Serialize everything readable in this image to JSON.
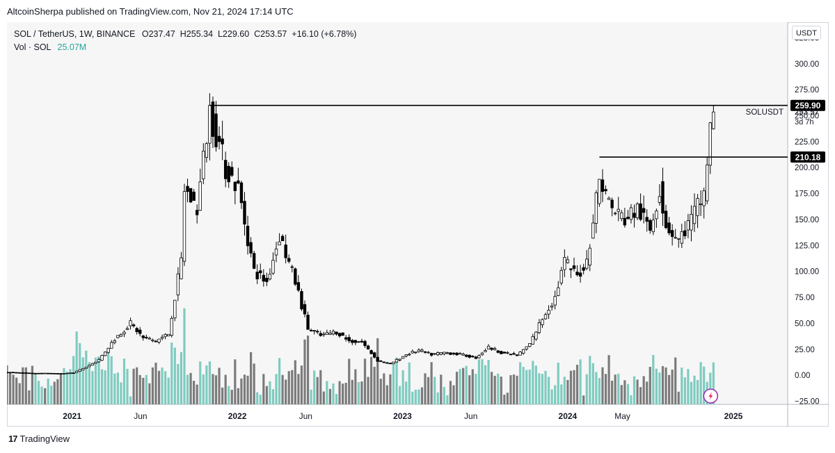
{
  "header": {
    "publish_line": "AltcoinSherpa published on TradingView.com, Nov 21, 2024 17:14 UTC"
  },
  "legend": {
    "symbol": "SOL / TetherUS, 1W, BINANCE",
    "ohlc": "O237.47  H255.34  L229.60  C253.57  +16.10 (+6.78%)",
    "volume_label": "Vol · SOL",
    "volume_value": "25.07M"
  },
  "footer": {
    "brand": "TradingView"
  },
  "price_axis": {
    "unit": "USDT"
  },
  "colors": {
    "up": "#ffffff",
    "down": "#000000",
    "vol_up": "#7fcbc0",
    "vol_down": "#7b7b7b",
    "level": "#000000"
  },
  "chart_data": {
    "type": "candlestick",
    "timeframe": "1W",
    "y_ticks": [
      325,
      300,
      275,
      250,
      225,
      200,
      175,
      150,
      125,
      100,
      75,
      50,
      25,
      0,
      -25
    ],
    "y_tick_labels": [
      "325.00",
      "300.00",
      "275.00",
      "250.00",
      "225.00",
      "200.00",
      "175.00",
      "150.00",
      "125.00",
      "100.00",
      "75.00",
      "50.00",
      "25.00",
      "0.00",
      "−25.00"
    ],
    "ylim": [
      -28,
      340
    ],
    "x_labels": [
      {
        "label": "2021",
        "date": "2021-01-01"
      },
      {
        "label": "Jun",
        "date": "2021-06-01"
      },
      {
        "label": "2022",
        "date": "2022-01-01"
      },
      {
        "label": "Jun",
        "date": "2022-06-01"
      },
      {
        "label": "2023",
        "date": "2023-01-01"
      },
      {
        "label": "Jun",
        "date": "2023-06-01"
      },
      {
        "label": "2024",
        "date": "2024-01-01"
      },
      {
        "label": "May",
        "date": "2024-05-01"
      },
      {
        "label": "2025",
        "date": "2025-01-01"
      }
    ],
    "xlim": [
      "2020-08-10",
      "2025-05-01"
    ],
    "levels": [
      {
        "label": "259.90",
        "value": 259.9,
        "start": "2021-11-01"
      },
      {
        "label": "210.18",
        "value": 210.18,
        "start": "2024-03-11"
      }
    ],
    "last_price": {
      "label": "253.57",
      "symbol": "SOLUSDT",
      "countdown": "3d 7h",
      "value": 253.57
    },
    "series": [
      {
        "date": "2020-08-10",
        "value": 3
      },
      {
        "date": "2020-09-07",
        "value": 2.5
      },
      {
        "date": "2020-10-05",
        "value": 2
      },
      {
        "date": "2020-11-02",
        "value": 2
      },
      {
        "date": "2020-12-07",
        "value": 1.6
      },
      {
        "date": "2021-01-04",
        "value": 2.5
      },
      {
        "date": "2021-02-01",
        "value": 8
      },
      {
        "date": "2021-03-01",
        "value": 15
      },
      {
        "date": "2021-04-05",
        "value": 35
      },
      {
        "date": "2021-05-10",
        "value": 50
      },
      {
        "date": "2021-06-07",
        "value": 36
      },
      {
        "date": "2021-07-05",
        "value": 33
      },
      {
        "date": "2021-08-02",
        "value": 40
      },
      {
        "date": "2021-08-30",
        "value": 110
      },
      {
        "date": "2021-09-06",
        "value": 180
      },
      {
        "date": "2021-10-04",
        "value": 160
      },
      {
        "date": "2021-11-01",
        "value": 255
      },
      {
        "date": "2021-12-06",
        "value": 200
      },
      {
        "date": "2022-01-03",
        "value": 180
      },
      {
        "date": "2022-02-07",
        "value": 100
      },
      {
        "date": "2022-03-07",
        "value": 90
      },
      {
        "date": "2022-04-04",
        "value": 135
      },
      {
        "date": "2022-05-09",
        "value": 90
      },
      {
        "date": "2022-06-06",
        "value": 45
      },
      {
        "date": "2022-07-04",
        "value": 38
      },
      {
        "date": "2022-08-08",
        "value": 42
      },
      {
        "date": "2022-09-05",
        "value": 33
      },
      {
        "date": "2022-10-03",
        "value": 32
      },
      {
        "date": "2022-11-07",
        "value": 14
      },
      {
        "date": "2022-12-05",
        "value": 11
      },
      {
        "date": "2023-01-09",
        "value": 20
      },
      {
        "date": "2023-02-06",
        "value": 24
      },
      {
        "date": "2023-03-06",
        "value": 20
      },
      {
        "date": "2023-04-03",
        "value": 22
      },
      {
        "date": "2023-05-08",
        "value": 20
      },
      {
        "date": "2023-06-12",
        "value": 17
      },
      {
        "date": "2023-07-10",
        "value": 27
      },
      {
        "date": "2023-08-07",
        "value": 22
      },
      {
        "date": "2023-09-11",
        "value": 19
      },
      {
        "date": "2023-10-09",
        "value": 30
      },
      {
        "date": "2023-11-06",
        "value": 55
      },
      {
        "date": "2023-12-04",
        "value": 75
      },
      {
        "date": "2023-12-25",
        "value": 110
      },
      {
        "date": "2024-01-22",
        "value": 95
      },
      {
        "date": "2024-02-12",
        "value": 110
      },
      {
        "date": "2024-03-11",
        "value": 190
      },
      {
        "date": "2024-04-08",
        "value": 160
      },
      {
        "date": "2024-05-06",
        "value": 150
      },
      {
        "date": "2024-06-03",
        "value": 160
      },
      {
        "date": "2024-07-01",
        "value": 140
      },
      {
        "date": "2024-07-22",
        "value": 180
      },
      {
        "date": "2024-08-05",
        "value": 145
      },
      {
        "date": "2024-09-02",
        "value": 130
      },
      {
        "date": "2024-09-30",
        "value": 150
      },
      {
        "date": "2024-10-28",
        "value": 175
      },
      {
        "date": "2024-11-11",
        "value": 237
      },
      {
        "date": "2024-11-18",
        "value": 253.57
      }
    ]
  }
}
